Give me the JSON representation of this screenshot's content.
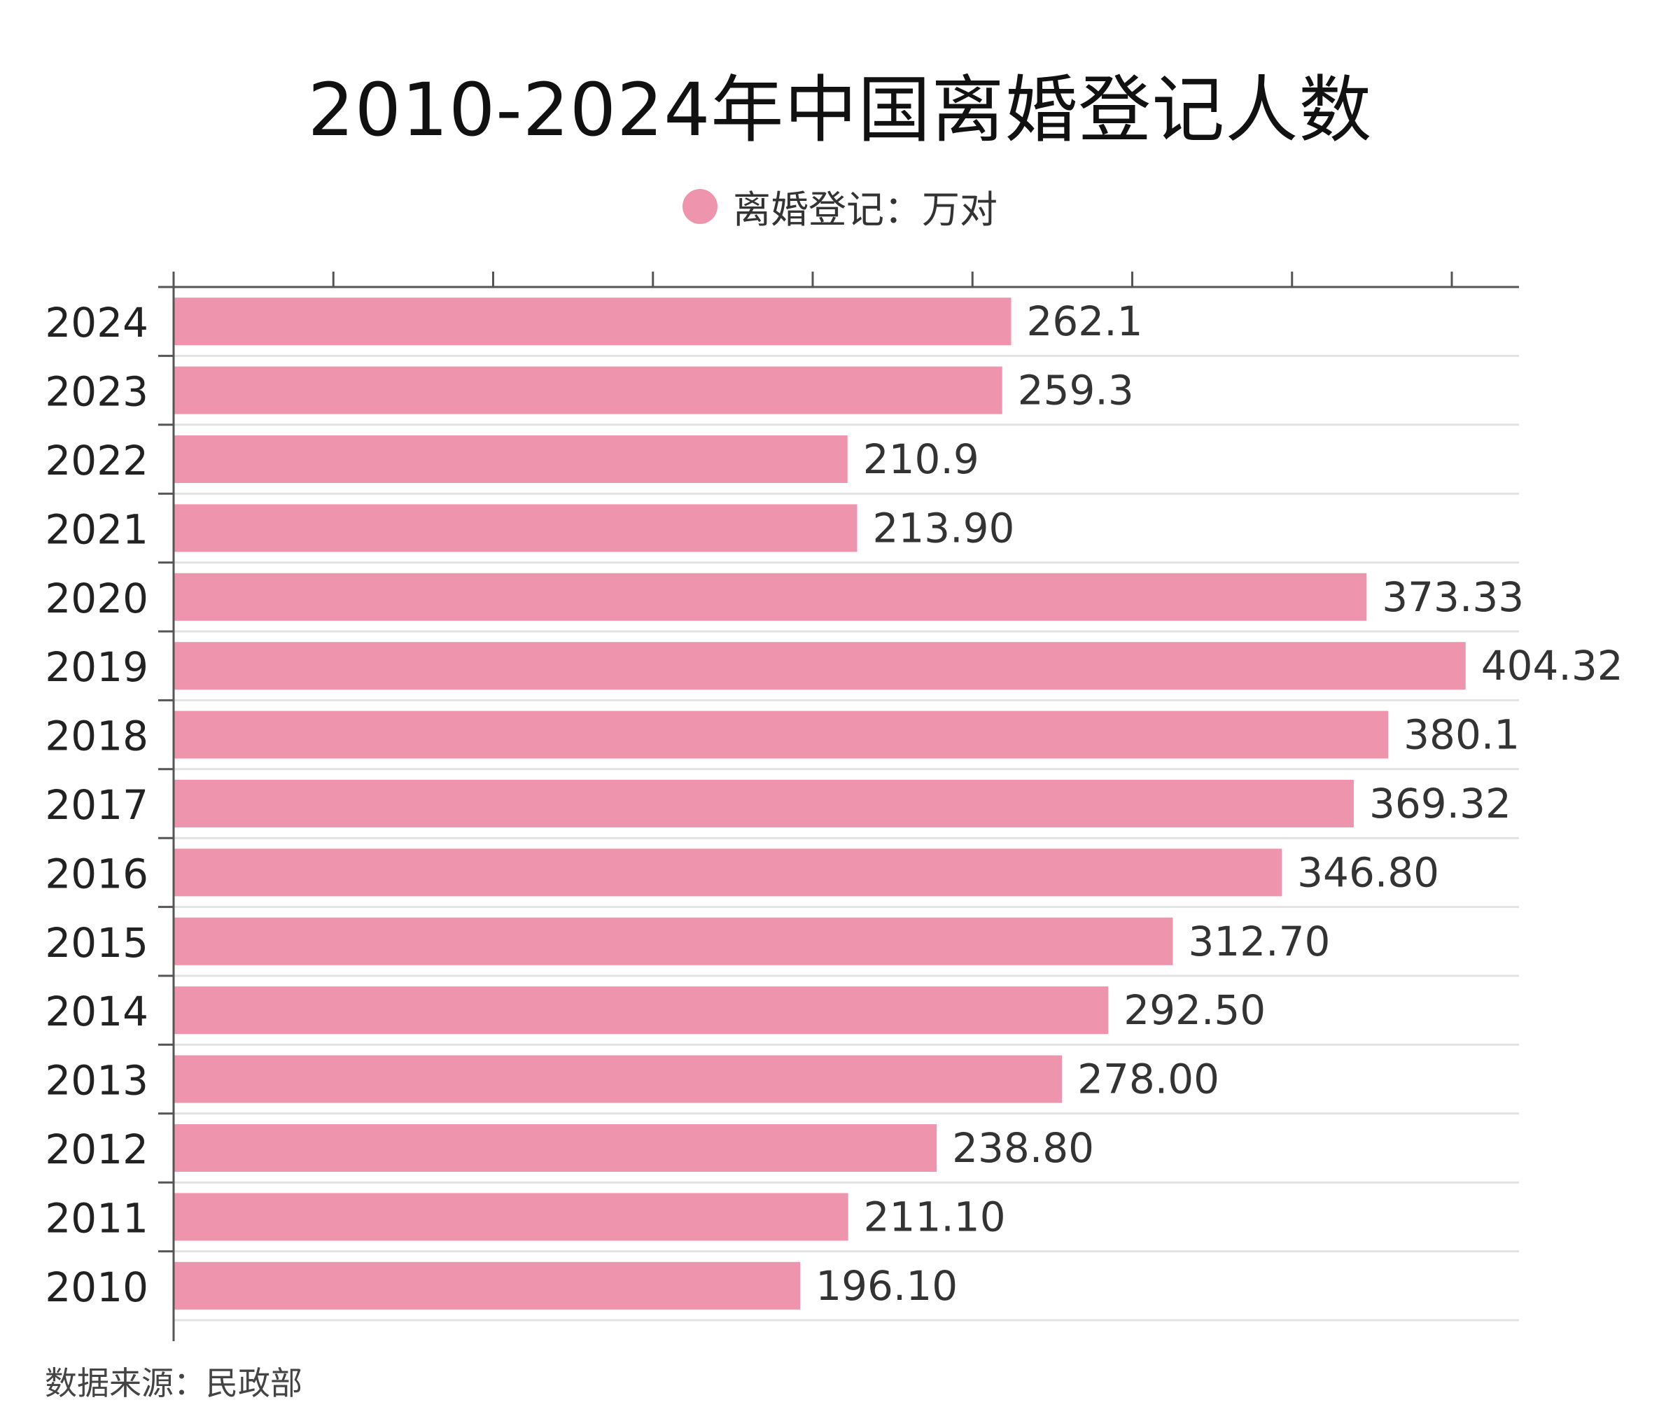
{
  "title": "2010-2024年中国离婚登记人数",
  "legend": {
    "label": "离婚登记：万对",
    "color": "#ee94ad"
  },
  "source": "数据来源：民政部",
  "chart_data": {
    "type": "bar",
    "orientation": "horizontal",
    "title": "2010-2024年中国离婚登记人数",
    "xlabel": "",
    "ylabel": "",
    "xlim": [
      0,
      425
    ],
    "grid": true,
    "legend_position": "top-center",
    "series": [
      {
        "name": "离婚登记：万对",
        "color": "#ee94ad",
        "points": [
          {
            "year": "2024",
            "value": 262.1,
            "label": "262.1"
          },
          {
            "year": "2023",
            "value": 259.3,
            "label": "259.3"
          },
          {
            "year": "2022",
            "value": 210.9,
            "label": "210.9"
          },
          {
            "year": "2021",
            "value": 213.9,
            "label": "213.90"
          },
          {
            "year": "2020",
            "value": 373.33,
            "label": "373.33"
          },
          {
            "year": "2019",
            "value": 404.32,
            "label": "404.32"
          },
          {
            "year": "2018",
            "value": 380.1,
            "label": "380.1"
          },
          {
            "year": "2017",
            "value": 369.32,
            "label": "369.32"
          },
          {
            "year": "2016",
            "value": 346.8,
            "label": "346.80"
          },
          {
            "year": "2015",
            "value": 312.7,
            "label": "312.70"
          },
          {
            "year": "2014",
            "value": 292.5,
            "label": "292.50"
          },
          {
            "year": "2013",
            "value": 278.0,
            "label": "278.00"
          },
          {
            "year": "2012",
            "value": 238.8,
            "label": "238.80"
          },
          {
            "year": "2011",
            "value": 211.1,
            "label": "211.10"
          },
          {
            "year": "2010",
            "value": 196.1,
            "label": "196.10"
          }
        ]
      }
    ]
  }
}
